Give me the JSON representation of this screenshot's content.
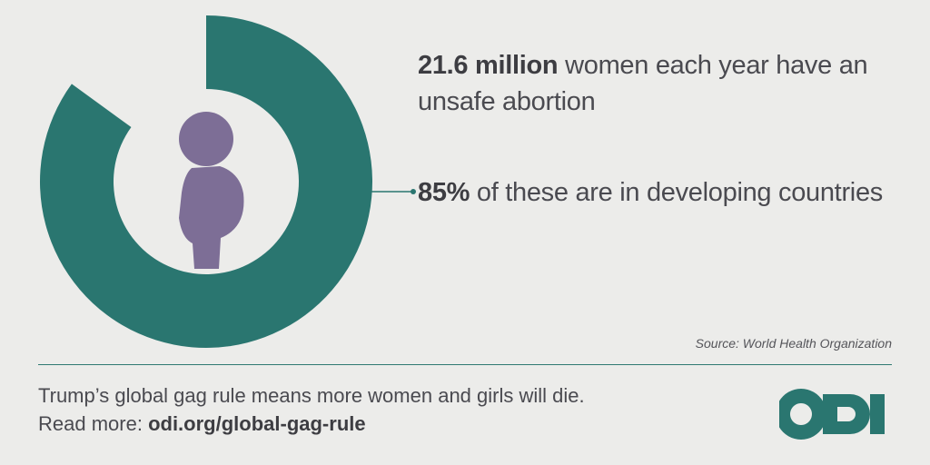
{
  "colors": {
    "background": "#ececea",
    "accent": "#2a7670",
    "figure": "#7d6e96",
    "text": "#4a4a50"
  },
  "chart_data": {
    "type": "pie",
    "variant": "donut",
    "slices": [
      {
        "label": "developing countries",
        "value": 85,
        "color": "#2a7670"
      },
      {
        "label": "other",
        "value": 15,
        "color": "none"
      }
    ],
    "center_icon": "pregnant-woman-icon",
    "annotations": [
      "stat_primary",
      "stat_secondary"
    ]
  },
  "stats": {
    "primary": {
      "highlight": "21.6 million",
      "rest": " women each year have an unsafe abortion"
    },
    "secondary": {
      "highlight": "85%",
      "rest": " of these are in developing countries"
    }
  },
  "source": "Source: World Health Organization",
  "footer": {
    "line1": "Trump’s global gag rule means more women and girls will die.",
    "read_more_label": "Read more: ",
    "link": "odi.org/global-gag-rule"
  },
  "logo": {
    "text": "odi",
    "icon": "odi-logo-icon"
  }
}
